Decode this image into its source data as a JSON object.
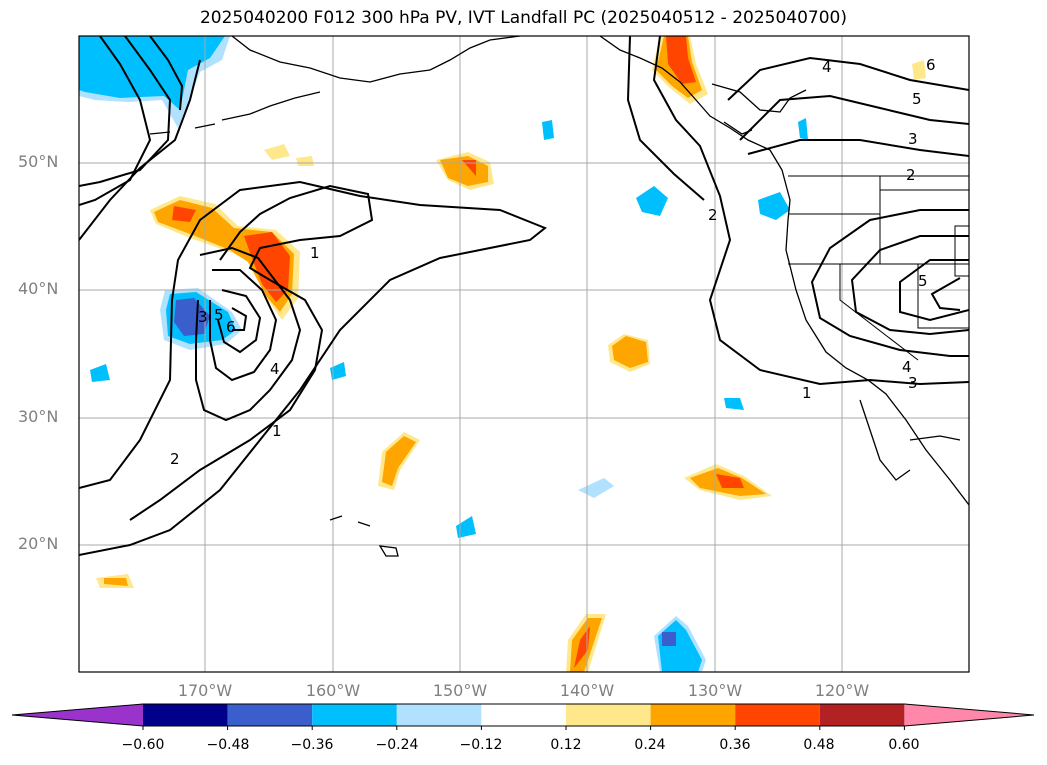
{
  "title": "2025040200 F012 300 hPa PV, IVT Landfall PC (2025040512 - 2025040700)",
  "map": {
    "lat_labels": [
      "50°N",
      "40°N",
      "30°N",
      "20°N"
    ],
    "lon_labels": [
      "170°W",
      "160°W",
      "150°W",
      "140°W",
      "130°W",
      "120°W"
    ],
    "contour_labels": [
      "1",
      "2",
      "3",
      "4",
      "5",
      "6"
    ]
  },
  "colorbar": {
    "ticks": [
      "−0.60",
      "−0.48",
      "−0.36",
      "−0.24",
      "−0.12",
      "0.12",
      "0.24",
      "0.36",
      "0.48",
      "0.60"
    ],
    "colors": [
      "#9933cc",
      "#00008b",
      "#3a5fcd",
      "#00bfff",
      "#b0e2ff",
      "#ffffff",
      "#ffe88c",
      "#ffa500",
      "#ff4500",
      "#b22222",
      "#ff88aa"
    ]
  }
}
